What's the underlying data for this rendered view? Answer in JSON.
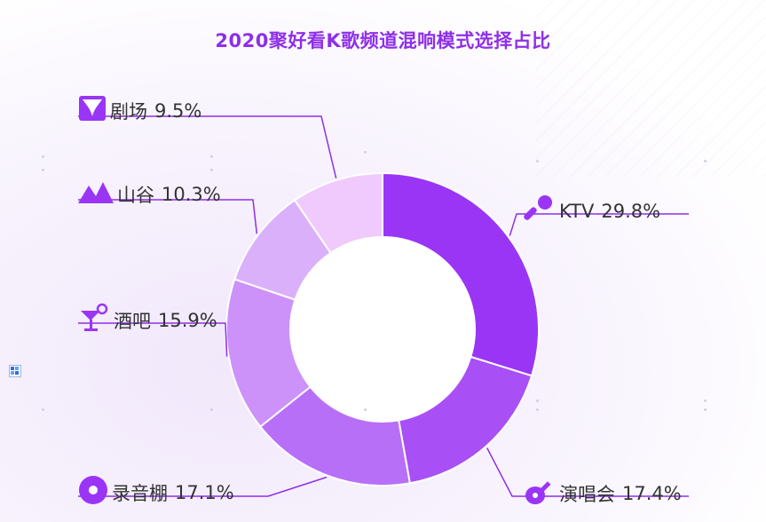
{
  "chart_data": {
    "type": "pie",
    "title": "2020聚好看K歌频道混响模式选择占比",
    "slices": [
      {
        "label": "KTV",
        "value": 29.8,
        "pct_text": "29.8%",
        "color": "#9a35f5",
        "icon": "microphone-icon"
      },
      {
        "label": "演唱会",
        "value": 17.4,
        "pct_text": "17.4%",
        "color": "#a94ff6",
        "icon": "guitar-icon"
      },
      {
        "label": "录音棚",
        "value": 17.1,
        "pct_text": "17.1%",
        "color": "#b86ff7",
        "icon": "disc-icon"
      },
      {
        "label": "酒吧",
        "value": 15.9,
        "pct_text": "15.9%",
        "color": "#cc92f9",
        "icon": "cocktail-icon"
      },
      {
        "label": "山谷",
        "value": 10.3,
        "pct_text": "10.3%",
        "color": "#dbb0fb",
        "icon": "mountain-icon"
      },
      {
        "label": "剧场",
        "value": 9.5,
        "pct_text": "9.5%",
        "color": "#f1cafd",
        "icon": "theater-icon"
      }
    ],
    "donut": true,
    "start_angle_deg": 0,
    "direction": "clockwise",
    "legend": "none"
  },
  "colors": {
    "title": "#8e2fe8",
    "leader_line": "#8e2fe8",
    "icon": "#9a35f5"
  }
}
